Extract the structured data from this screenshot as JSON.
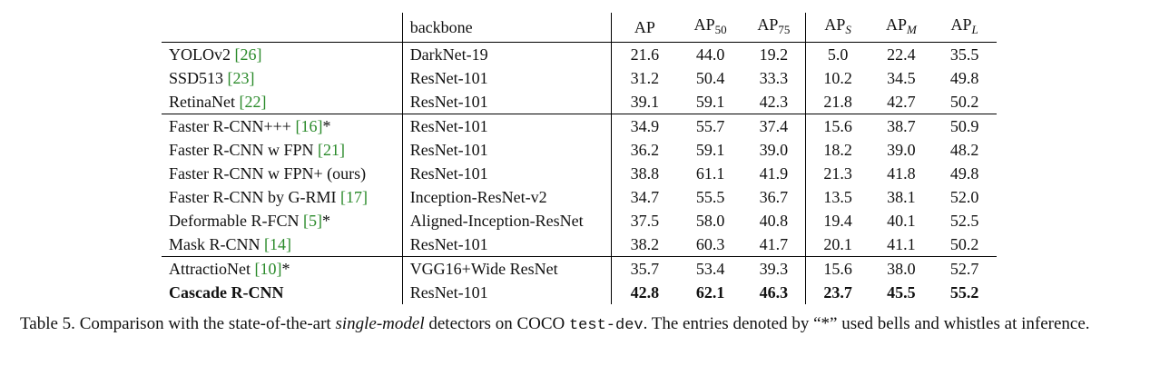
{
  "table": {
    "headers": {
      "method": "",
      "backbone": "backbone",
      "ap": "AP",
      "ap50_base": "AP",
      "ap50_sub": "50",
      "ap75_base": "AP",
      "ap75_sub": "75",
      "aps_base": "AP",
      "aps_sub": "S",
      "apm_base": "AP",
      "apm_sub": "M",
      "apl_base": "AP",
      "apl_sub": "L"
    },
    "rows": [
      {
        "name": "YOLOv2 ",
        "cite": "[26]",
        "suffix": "",
        "backbone": "DarkNet-19",
        "ap": "21.6",
        "ap50": "44.0",
        "ap75": "19.2",
        "aps": "5.0",
        "apm": "22.4",
        "apl": "35.5"
      },
      {
        "name": "SSD513 ",
        "cite": "[23]",
        "suffix": "",
        "backbone": "ResNet-101",
        "ap": "31.2",
        "ap50": "50.4",
        "ap75": "33.3",
        "aps": "10.2",
        "apm": "34.5",
        "apl": "49.8"
      },
      {
        "name": "RetinaNet ",
        "cite": "[22]",
        "suffix": "",
        "backbone": "ResNet-101",
        "ap": "39.1",
        "ap50": "59.1",
        "ap75": "42.3",
        "aps": "21.8",
        "apm": "42.7",
        "apl": "50.2"
      },
      {
        "name": "Faster R-CNN+++ ",
        "cite": "[16]",
        "suffix": "*",
        "backbone": "ResNet-101",
        "ap": "34.9",
        "ap50": "55.7",
        "ap75": "37.4",
        "aps": "15.6",
        "apm": "38.7",
        "apl": "50.9"
      },
      {
        "name": "Faster R-CNN w FPN ",
        "cite": "[21]",
        "suffix": "",
        "backbone": "ResNet-101",
        "ap": "36.2",
        "ap50": "59.1",
        "ap75": "39.0",
        "aps": "18.2",
        "apm": "39.0",
        "apl": "48.2"
      },
      {
        "name": "Faster R-CNN w FPN+ (ours)",
        "cite": "",
        "suffix": "",
        "backbone": "ResNet-101",
        "ap": "38.8",
        "ap50": "61.1",
        "ap75": "41.9",
        "aps": "21.3",
        "apm": "41.8",
        "apl": "49.8"
      },
      {
        "name": "Faster R-CNN by G-RMI ",
        "cite": "[17]",
        "suffix": "",
        "backbone": "Inception-ResNet-v2",
        "ap": "34.7",
        "ap50": "55.5",
        "ap75": "36.7",
        "aps": "13.5",
        "apm": "38.1",
        "apl": "52.0"
      },
      {
        "name": "Deformable R-FCN ",
        "cite": "[5]",
        "suffix": "*",
        "backbone": "Aligned-Inception-ResNet",
        "ap": "37.5",
        "ap50": "58.0",
        "ap75": "40.8",
        "aps": "19.4",
        "apm": "40.1",
        "apl": "52.5"
      },
      {
        "name": "Mask R-CNN ",
        "cite": "[14]",
        "suffix": "",
        "backbone": "ResNet-101",
        "ap": "38.2",
        "ap50": "60.3",
        "ap75": "41.7",
        "aps": "20.1",
        "apm": "41.1",
        "apl": "50.2"
      },
      {
        "name": "AttractioNet ",
        "cite": "[10]",
        "suffix": "*",
        "backbone": "VGG16+Wide ResNet",
        "ap": "35.7",
        "ap50": "53.4",
        "ap75": "39.3",
        "aps": "15.6",
        "apm": "38.0",
        "apl": "52.7"
      },
      {
        "name": "Cascade R-CNN",
        "cite": "",
        "suffix": "",
        "backbone": "ResNet-101",
        "ap": "42.8",
        "ap50": "62.1",
        "ap75": "46.3",
        "aps": "23.7",
        "apm": "45.5",
        "apl": "55.2"
      }
    ]
  },
  "caption": {
    "label": "Table 5.",
    "text1": " Comparison with the state-of-the-art ",
    "emph": "single-model",
    "text2": " detectors on COCO ",
    "mono": "test-dev",
    "text3": ".  The entries denoted by “*” used bells and whistles at inference."
  }
}
